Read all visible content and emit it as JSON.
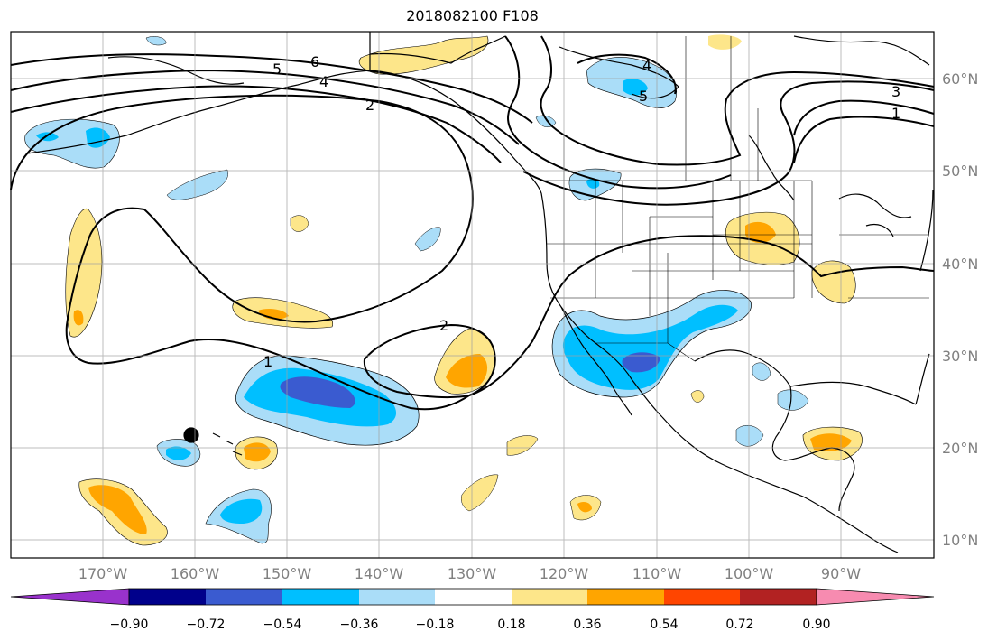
{
  "title": "2018082100 F108",
  "latitude_labels": [
    "60°N",
    "50°N",
    "40°N",
    "30°N",
    "20°N",
    "10°N"
  ],
  "longitude_labels": [
    "170°W",
    "160°W",
    "150°W",
    "140°W",
    "130°W",
    "120°W",
    "110°W",
    "100°W",
    "90°W"
  ],
  "colorbar": {
    "tick_labels": [
      "−0.90",
      "−0.72",
      "−0.54",
      "−0.36",
      "−0.18",
      "0.18",
      "0.36",
      "0.54",
      "0.72",
      "0.90"
    ],
    "colors": [
      "#9932cc",
      "#00008b",
      "#3a5bd0",
      "#00bfff",
      "#aaddf8",
      "#ffffff",
      "#fde68a",
      "#ffa500",
      "#ff4500",
      "#b22222",
      "#f78bb0"
    ]
  },
  "contour_labels": [
    "6",
    "5",
    "4",
    "2",
    "2",
    "1",
    "4",
    "5",
    "3",
    "1"
  ],
  "colors": {
    "positive_light": "#fde68a",
    "positive_mid": "#ffa500",
    "negative_light": "#aaddf8",
    "negative_mid": "#00bfff",
    "negative_dark": "#3a5bd0",
    "gridline": "#a0a0a0",
    "contour": "#000000"
  }
}
